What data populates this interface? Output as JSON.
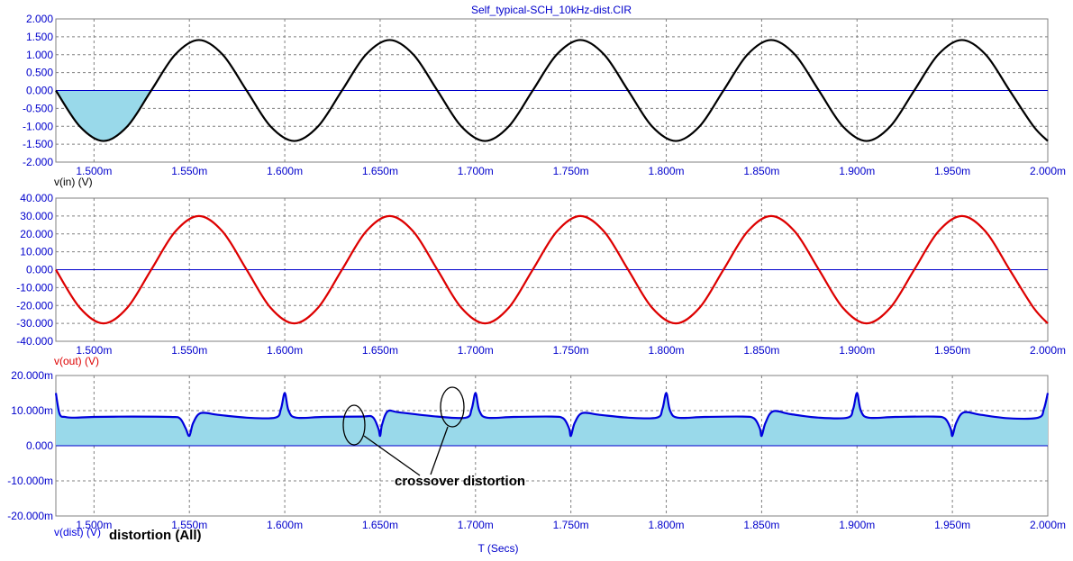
{
  "title": "Self_typical-SCH_10kHz-dist.CIR",
  "x_axis_label": "T (Secs)",
  "colors": {
    "axis_text": "#0000cc",
    "grid": "#808080",
    "zero_line": "#0000cc",
    "shade": "#99d9ea",
    "vin_trace": "#000000",
    "vout_trace": "#dd0000",
    "dist_trace": "#0000dd",
    "annotation": "#000000"
  },
  "annotations": {
    "crossover": "crossover distortion",
    "dist_all": "distortion (All)"
  },
  "chart_data": [
    {
      "type": "line",
      "title": "Self_typical-SCH_10kHz-dist.CIR",
      "xlabel": "",
      "series_label": "v(in) (V)",
      "xlim": [
        1.48,
        2.0
      ],
      "ylim": [
        -2.0,
        2.0
      ],
      "x_ticks": [
        "1.500m",
        "1.550m",
        "1.600m",
        "1.650m",
        "1.700m",
        "1.750m",
        "1.800m",
        "1.850m",
        "1.900m",
        "1.950m",
        "2.000m"
      ],
      "y_ticks": [
        "2.000",
        "1.500",
        "1.000",
        "0.500",
        "0.000",
        "-0.500",
        "-1.000",
        "-1.500",
        "-2.000"
      ],
      "grid": true,
      "series": [
        {
          "name": "v(in) (V)",
          "x": [
            1.48,
            1.4925,
            1.505,
            1.5175,
            1.53,
            1.5425,
            1.555,
            1.5675,
            1.58,
            1.5925,
            1.605,
            1.6175,
            1.63,
            1.6425,
            1.655,
            1.6675,
            1.68,
            1.6925,
            1.705,
            1.7175,
            1.73,
            1.7425,
            1.755,
            1.7675,
            1.78,
            1.7925,
            1.805,
            1.8175,
            1.83,
            1.8425,
            1.855,
            1.8675,
            1.88,
            1.8925,
            1.905,
            1.9175,
            1.93,
            1.9425,
            1.955,
            1.9675,
            1.98,
            1.9925,
            2.0
          ],
          "y": [
            0.0,
            -1.0,
            -1.41,
            -1.0,
            0.0,
            1.0,
            1.41,
            1.0,
            0.0,
            -1.0,
            -1.41,
            -1.0,
            0.0,
            1.0,
            1.41,
            1.0,
            0.0,
            -1.0,
            -1.41,
            -1.0,
            0.0,
            1.0,
            1.41,
            1.0,
            0.0,
            -1.0,
            -1.41,
            -1.0,
            0.0,
            1.0,
            1.41,
            1.0,
            0.0,
            -1.0,
            -1.41,
            -1.0,
            0.0,
            1.0,
            1.41,
            1.0,
            0.0,
            -1.0,
            -1.41
          ]
        }
      ]
    },
    {
      "type": "line",
      "title": "",
      "xlabel": "",
      "series_label": "v(out) (V)",
      "xlim": [
        1.48,
        2.0
      ],
      "ylim": [
        -40.0,
        40.0
      ],
      "x_ticks": [
        "1.500m",
        "1.550m",
        "1.600m",
        "1.650m",
        "1.700m",
        "1.750m",
        "1.800m",
        "1.850m",
        "1.900m",
        "1.950m",
        "2.000m"
      ],
      "y_ticks": [
        "40.000",
        "30.000",
        "20.000",
        "10.000",
        "0.000",
        "-10.000",
        "-20.000",
        "-30.000",
        "-40.000"
      ],
      "grid": true,
      "series": [
        {
          "name": "v(out) (V)",
          "x": [
            1.48,
            1.4925,
            1.505,
            1.5175,
            1.53,
            1.5425,
            1.555,
            1.5675,
            1.58,
            1.5925,
            1.605,
            1.6175,
            1.63,
            1.6425,
            1.655,
            1.6675,
            1.68,
            1.6925,
            1.705,
            1.7175,
            1.73,
            1.7425,
            1.755,
            1.7675,
            1.78,
            1.7925,
            1.805,
            1.8175,
            1.83,
            1.8425,
            1.855,
            1.8675,
            1.88,
            1.8925,
            1.905,
            1.9175,
            1.93,
            1.9425,
            1.955,
            1.9675,
            1.98,
            1.9925,
            2.0
          ],
          "y": [
            0.0,
            -21.2,
            -30.0,
            -21.2,
            0.0,
            21.2,
            30.0,
            21.2,
            0.0,
            -21.2,
            -30.0,
            -21.2,
            0.0,
            21.2,
            30.0,
            21.2,
            0.0,
            -21.2,
            -30.0,
            -21.2,
            0.0,
            21.2,
            30.0,
            21.2,
            0.0,
            -21.2,
            -30.0,
            -21.2,
            0.0,
            21.2,
            30.0,
            21.2,
            0.0,
            -21.2,
            -30.0,
            -21.2,
            0.0,
            21.2,
            30.0,
            21.2,
            0.0,
            -21.2,
            -30.0
          ]
        }
      ]
    },
    {
      "type": "area",
      "title": "",
      "xlabel": "T (Secs)",
      "series_label": "v(dist) (V)",
      "xlim": [
        1.48,
        2.0
      ],
      "ylim": [
        -20.0,
        20.0
      ],
      "x_ticks": [
        "1.500m",
        "1.550m",
        "1.600m",
        "1.650m",
        "1.700m",
        "1.750m",
        "1.800m",
        "1.850m",
        "1.900m",
        "1.950m",
        "2.000m"
      ],
      "y_ticks": [
        "20.000m",
        "10.000m",
        "0.000",
        "-10.000m",
        "-20.000m"
      ],
      "grid": true,
      "series": [
        {
          "name": "v(dist) (V)",
          "x": [
            1.48,
            1.482,
            1.485,
            1.49,
            1.5,
            1.52,
            1.54,
            1.545,
            1.548,
            1.55,
            1.552,
            1.556,
            1.565,
            1.58,
            1.595,
            1.598,
            1.6,
            1.602,
            1.606,
            1.62,
            1.64,
            1.646,
            1.649,
            1.65,
            1.651,
            1.654,
            1.66,
            1.68,
            1.695,
            1.698,
            1.7,
            1.702,
            1.706,
            1.72,
            1.74,
            1.746,
            1.749,
            1.75,
            1.752,
            1.756,
            1.765,
            1.78,
            1.795,
            1.798,
            1.8,
            1.802,
            1.806,
            1.82,
            1.84,
            1.846,
            1.849,
            1.85,
            1.852,
            1.856,
            1.865,
            1.88,
            1.895,
            1.898,
            1.9,
            1.902,
            1.906,
            1.92,
            1.94,
            1.946,
            1.949,
            1.95,
            1.952,
            1.956,
            1.965,
            1.98,
            1.995,
            1.998,
            2.0
          ],
          "y": [
            15.0,
            9.0,
            8.2,
            8.0,
            8.2,
            8.3,
            8.2,
            7.8,
            5.0,
            2.8,
            6.5,
            9.3,
            8.8,
            8.0,
            8.0,
            10.5,
            15.0,
            10.0,
            8.0,
            8.2,
            8.3,
            8.2,
            5.0,
            2.8,
            6.0,
            9.8,
            9.5,
            8.3,
            8.0,
            10.5,
            15.0,
            10.0,
            8.0,
            8.2,
            8.3,
            7.8,
            5.0,
            2.8,
            6.5,
            9.3,
            8.8,
            8.0,
            8.0,
            10.5,
            15.0,
            10.0,
            8.0,
            8.2,
            8.3,
            7.8,
            5.0,
            2.8,
            6.5,
            9.8,
            9.0,
            8.0,
            8.0,
            10.5,
            15.0,
            10.0,
            8.0,
            8.2,
            8.3,
            7.8,
            5.0,
            2.8,
            6.5,
            9.5,
            8.8,
            7.8,
            8.0,
            10.5,
            15.0
          ]
        }
      ]
    }
  ]
}
